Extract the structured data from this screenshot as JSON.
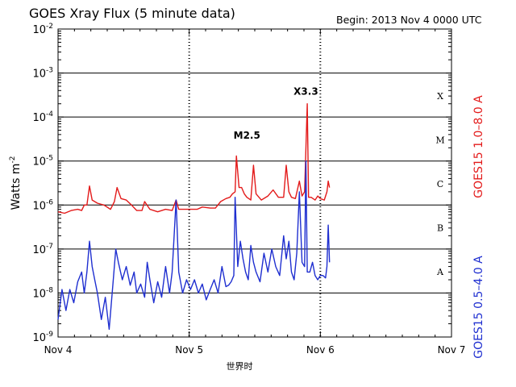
{
  "chart_data": {
    "type": "line",
    "title": "GOES Xray Flux (5 minute data)",
    "begin_label": "Begin:  2013 Nov 4 0000 UTC",
    "ylabel": "Watts m",
    "ylabel_sup": "-2",
    "xlabel": "世界时",
    "yscale": "log",
    "ylim": [
      1e-09,
      0.01
    ],
    "xlim": [
      0,
      3
    ],
    "x_unit": "days since 2013 Nov 4 0000 UTC",
    "grid": true,
    "x_ticks": [
      {
        "value": 0,
        "label": "Nov 4"
      },
      {
        "value": 1,
        "label": "Nov 5"
      },
      {
        "value": 2,
        "label": "Nov 6"
      },
      {
        "value": 3,
        "label": "Nov 7"
      }
    ],
    "y_ticks": [
      {
        "exp": -9,
        "base": "10",
        "sup": "-9"
      },
      {
        "exp": -8,
        "base": "10",
        "sup": "-8"
      },
      {
        "exp": -7,
        "base": "10",
        "sup": "-7"
      },
      {
        "exp": -6,
        "base": "10",
        "sup": "-6"
      },
      {
        "exp": -5,
        "base": "10",
        "sup": "-5"
      },
      {
        "exp": -4,
        "base": "10",
        "sup": "-4"
      },
      {
        "exp": -3,
        "base": "10",
        "sup": "-3"
      },
      {
        "exp": -2,
        "base": "10",
        "sup": "-2"
      }
    ],
    "flare_classes": [
      {
        "label": "A",
        "exp": -7.5
      },
      {
        "label": "B",
        "exp": -6.5
      },
      {
        "label": "C",
        "exp": -5.5
      },
      {
        "label": "M",
        "exp": -4.5
      },
      {
        "label": "X",
        "exp": -3.5
      }
    ],
    "annotations": [
      {
        "text": "M2.5",
        "x": 1.44,
        "y": 3.2e-05
      },
      {
        "text": "X3.3",
        "x": 1.89,
        "y": 0.00032
      }
    ],
    "series": [
      {
        "name": "GOES15 1.0–8.0 A",
        "color": "#e31a1a",
        "points": [
          [
            0.0,
            7e-07
          ],
          [
            0.05,
            6.5e-07
          ],
          [
            0.1,
            7.5e-07
          ],
          [
            0.15,
            8e-07
          ],
          [
            0.18,
            7.5e-07
          ],
          [
            0.2,
            1e-06
          ],
          [
            0.22,
            1e-06
          ],
          [
            0.24,
            2.7e-06
          ],
          [
            0.26,
            1.3e-06
          ],
          [
            0.3,
            1.1e-06
          ],
          [
            0.35,
            1e-06
          ],
          [
            0.4,
            8e-07
          ],
          [
            0.43,
            1.2e-06
          ],
          [
            0.45,
            2.5e-06
          ],
          [
            0.48,
            1.4e-06
          ],
          [
            0.52,
            1.3e-06
          ],
          [
            0.56,
            1e-06
          ],
          [
            0.6,
            7.5e-07
          ],
          [
            0.64,
            7.5e-07
          ],
          [
            0.66,
            1.2e-06
          ],
          [
            0.7,
            8e-07
          ],
          [
            0.76,
            7e-07
          ],
          [
            0.82,
            8e-07
          ],
          [
            0.87,
            7.5e-07
          ],
          [
            0.9,
            1.3e-06
          ],
          [
            0.92,
            8e-07
          ],
          [
            1.0,
            8e-07
          ],
          [
            1.06,
            8e-07
          ],
          [
            1.1,
            9e-07
          ],
          [
            1.16,
            8.5e-07
          ],
          [
            1.2,
            8.5e-07
          ],
          [
            1.24,
            1.2e-06
          ],
          [
            1.28,
            1.4e-06
          ],
          [
            1.31,
            1.5e-06
          ],
          [
            1.33,
            1.8e-06
          ],
          [
            1.35,
            2e-06
          ],
          [
            1.36,
            1.3e-05
          ],
          [
            1.38,
            2.5e-06
          ],
          [
            1.4,
            2.5e-06
          ],
          [
            1.42,
            1.8e-06
          ],
          [
            1.44,
            1.5e-06
          ],
          [
            1.47,
            1.3e-06
          ],
          [
            1.49,
            8e-06
          ],
          [
            1.51,
            1.8e-06
          ],
          [
            1.55,
            1.3e-06
          ],
          [
            1.6,
            1.6e-06
          ],
          [
            1.64,
            2.2e-06
          ],
          [
            1.68,
            1.5e-06
          ],
          [
            1.72,
            1.5e-06
          ],
          [
            1.74,
            8e-06
          ],
          [
            1.76,
            2e-06
          ],
          [
            1.78,
            1.5e-06
          ],
          [
            1.81,
            1.4e-06
          ],
          [
            1.84,
            3.5e-06
          ],
          [
            1.86,
            1.6e-06
          ],
          [
            1.88,
            2e-06
          ],
          [
            1.9,
            0.0002
          ],
          [
            1.91,
            1.5e-06
          ],
          [
            1.93,
            1.5e-06
          ],
          [
            1.96,
            1.3e-06
          ],
          [
            1.98,
            1.6e-06
          ],
          [
            2.0,
            1.4e-06
          ],
          [
            2.03,
            1.3e-06
          ],
          [
            2.05,
            2e-06
          ],
          [
            2.06,
            3.5e-06
          ],
          [
            2.07,
            2.5e-06
          ]
        ]
      },
      {
        "name": "GOES15 0.5–4.0 A",
        "color": "#1f2fd0",
        "points": [
          [
            0.0,
            2.5e-09
          ],
          [
            0.03,
            1.2e-08
          ],
          [
            0.06,
            4e-09
          ],
          [
            0.09,
            1.2e-08
          ],
          [
            0.12,
            6e-09
          ],
          [
            0.15,
            1.8e-08
          ],
          [
            0.18,
            3e-08
          ],
          [
            0.2,
            1e-08
          ],
          [
            0.22,
            3e-08
          ],
          [
            0.24,
            1.5e-07
          ],
          [
            0.26,
            4e-08
          ],
          [
            0.28,
            2e-08
          ],
          [
            0.3,
            1e-08
          ],
          [
            0.33,
            2.5e-09
          ],
          [
            0.36,
            8e-09
          ],
          [
            0.39,
            1.5e-09
          ],
          [
            0.42,
            1.8e-08
          ],
          [
            0.44,
            1e-07
          ],
          [
            0.46,
            5e-08
          ],
          [
            0.49,
            2e-08
          ],
          [
            0.52,
            4e-08
          ],
          [
            0.55,
            1.5e-08
          ],
          [
            0.58,
            3e-08
          ],
          [
            0.6,
            1e-08
          ],
          [
            0.63,
            1.6e-08
          ],
          [
            0.66,
            8e-09
          ],
          [
            0.68,
            5e-08
          ],
          [
            0.7,
            2e-08
          ],
          [
            0.73,
            6e-09
          ],
          [
            0.76,
            1.8e-08
          ],
          [
            0.79,
            8e-09
          ],
          [
            0.82,
            4e-08
          ],
          [
            0.85,
            1e-08
          ],
          [
            0.87,
            3e-08
          ],
          [
            0.9,
            1.3e-06
          ],
          [
            0.92,
            3e-08
          ],
          [
            0.95,
            1e-08
          ],
          [
            0.98,
            2e-08
          ],
          [
            1.01,
            1.2e-08
          ],
          [
            1.04,
            2e-08
          ],
          [
            1.07,
            1e-08
          ],
          [
            1.1,
            1.6e-08
          ],
          [
            1.13,
            7e-09
          ],
          [
            1.16,
            1.2e-08
          ],
          [
            1.19,
            2e-08
          ],
          [
            1.22,
            1e-08
          ],
          [
            1.25,
            4e-08
          ],
          [
            1.28,
            1.4e-08
          ],
          [
            1.3,
            1.5e-08
          ],
          [
            1.32,
            1.8e-08
          ],
          [
            1.34,
            2.5e-08
          ],
          [
            1.35,
            1.5e-06
          ],
          [
            1.37,
            4e-08
          ],
          [
            1.39,
            1.5e-07
          ],
          [
            1.41,
            6e-08
          ],
          [
            1.43,
            3e-08
          ],
          [
            1.45,
            2e-08
          ],
          [
            1.47,
            1.2e-07
          ],
          [
            1.49,
            5e-08
          ],
          [
            1.51,
            3e-08
          ],
          [
            1.54,
            1.8e-08
          ],
          [
            1.57,
            8e-08
          ],
          [
            1.6,
            3e-08
          ],
          [
            1.63,
            1e-07
          ],
          [
            1.66,
            4e-08
          ],
          [
            1.69,
            2.5e-08
          ],
          [
            1.72,
            2e-07
          ],
          [
            1.74,
            6e-08
          ],
          [
            1.76,
            1.5e-07
          ],
          [
            1.78,
            3e-08
          ],
          [
            1.8,
            2e-08
          ],
          [
            1.82,
            8e-08
          ],
          [
            1.84,
            2e-06
          ],
          [
            1.86,
            5e-08
          ],
          [
            1.88,
            4e-08
          ],
          [
            1.89,
            1e-05
          ],
          [
            1.9,
            3e-08
          ],
          [
            1.92,
            3e-08
          ],
          [
            1.94,
            5e-08
          ],
          [
            1.96,
            2.5e-08
          ],
          [
            1.98,
            2e-08
          ],
          [
            2.0,
            2.5e-08
          ],
          [
            2.02,
            2.5e-08
          ],
          [
            2.04,
            2.2e-08
          ],
          [
            2.05,
            4e-08
          ],
          [
            2.06,
            3.5e-07
          ],
          [
            2.07,
            5e-08
          ]
        ]
      }
    ]
  }
}
